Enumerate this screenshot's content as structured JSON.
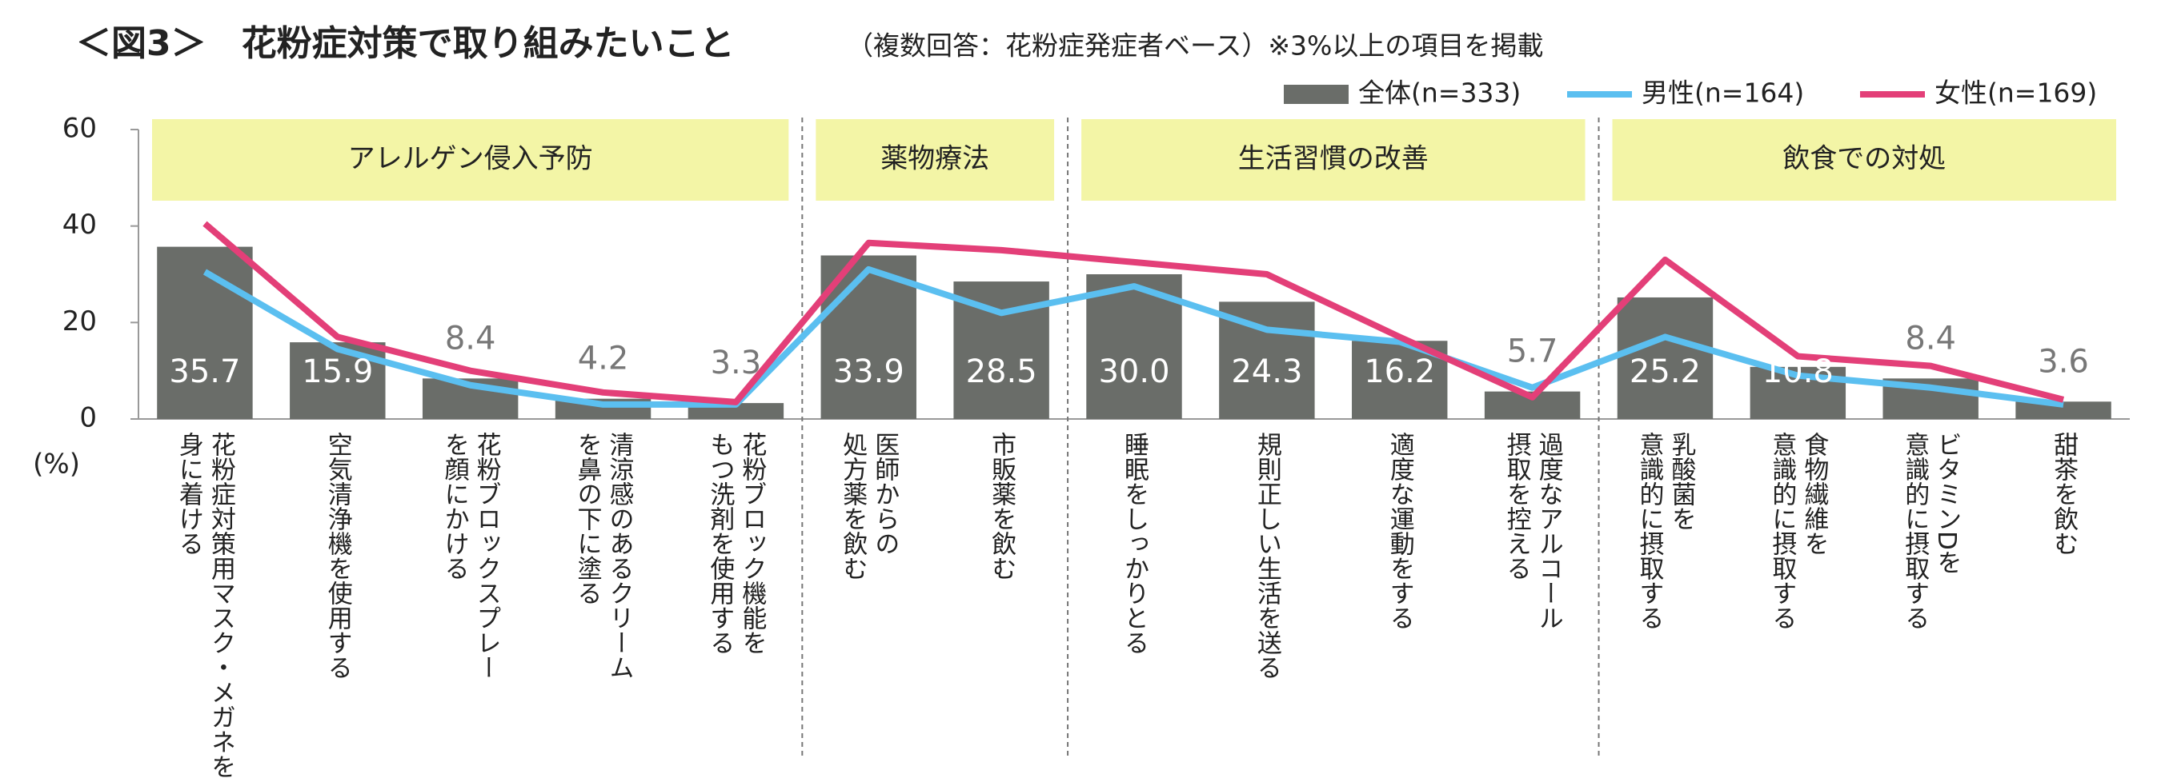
{
  "chart_data": {
    "type": "bar",
    "title": "＜図3＞　花粉症対策で取り組みたいこと",
    "subtitle": "（複数回答：花粉症発症者ベース）※3%以上の項目を掲載",
    "y_label": "(%)",
    "groups": [
      {
        "label": "アレルゲン侵入予防",
        "categories": [
          "花粉症対策用マスク・メガネを\n身に着ける",
          "空気清浄機を使用する",
          "花粉ブロックスプレー\nを顔にかける",
          "清涼感のあるクリーム\nを鼻の下に塗る",
          "花粉ブロック機能を\nもつ洗剤を使用する"
        ]
      },
      {
        "label": "薬物療法",
        "categories": [
          "医師からの\n処方薬を飲む",
          "市販薬を飲む"
        ]
      },
      {
        "label": "生活習慣の改善",
        "categories": [
          "睡眠をしっかりとる",
          "規則正しい生活を送る",
          "適度な運動をする",
          "過度なアルコール\n摂取を控える"
        ]
      },
      {
        "label": "飲食での対処",
        "categories": [
          "乳酸菌を\n意識的に摂取する",
          "食物繊維を\n意識的に摂取する",
          "ビタミンDを\n意識的に摂取する",
          "甜茶を飲む"
        ]
      }
    ],
    "series": [
      {
        "name": "全体(n=333)",
        "type": "bar",
        "color": "#6a6d69",
        "values": [
          35.7,
          15.9,
          8.4,
          4.2,
          3.3,
          33.9,
          28.5,
          30.0,
          24.3,
          16.2,
          5.7,
          25.2,
          10.8,
          8.4,
          3.6
        ],
        "value_labels": [
          "35.7",
          "15.9",
          "8.4",
          "4.2",
          "3.3",
          "33.9",
          "28.5",
          "30.0",
          "24.3",
          "16.2",
          "5.7",
          "25.2",
          "10.8",
          "8.4",
          "3.6"
        ]
      },
      {
        "name": "男性(n=164)",
        "type": "line",
        "color": "#5bbff0",
        "values": [
          30.5,
          14.5,
          7,
          3,
          3,
          31,
          22,
          27.5,
          18.5,
          16,
          6.5,
          17,
          9,
          6.5,
          3
        ]
      },
      {
        "name": "女性(n=169)",
        "type": "line",
        "color": "#e33f78",
        "values": [
          40.5,
          17,
          10,
          5.5,
          3.5,
          36.5,
          35,
          32.5,
          30,
          17,
          4.5,
          33,
          13,
          11,
          4
        ]
      }
    ],
    "ylim": [
      0,
      60
    ],
    "yticks": [
      0,
      20,
      40,
      60
    ],
    "group_color": "#f3f5a6"
  }
}
